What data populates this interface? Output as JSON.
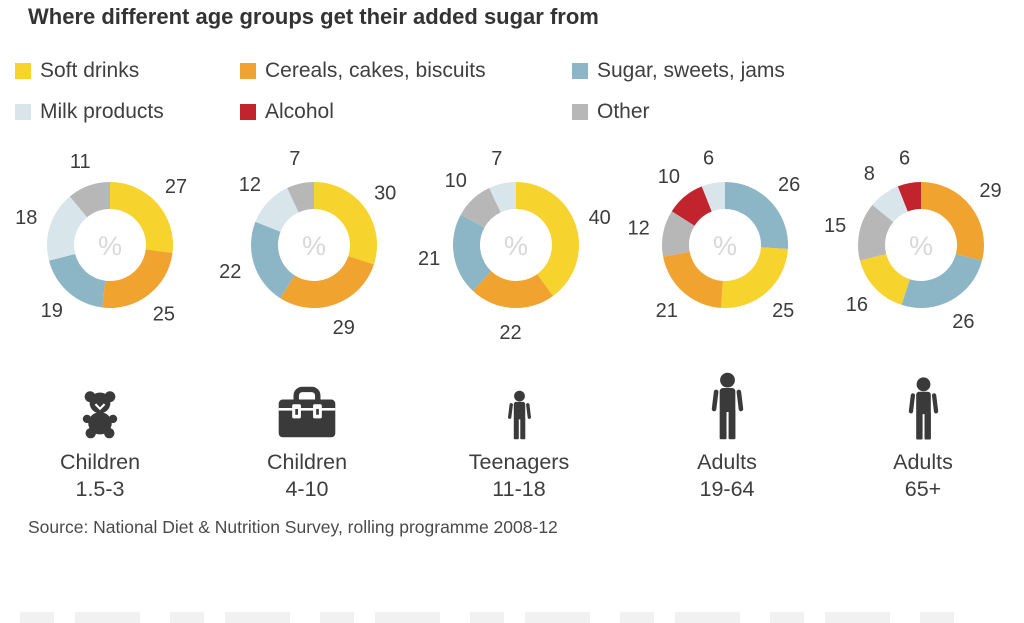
{
  "title": "Where different age groups get their added sugar from",
  "legend": {
    "items": [
      {
        "key": "soft-drinks",
        "label": "Soft drinks",
        "color": "#f6d32d"
      },
      {
        "key": "cereals",
        "label": "Cereals, cakes, biscuits",
        "color": "#f0a32f"
      },
      {
        "key": "sugar-sweets",
        "label": "Sugar, sweets, jams",
        "color": "#8cb6c6"
      },
      {
        "key": "milk-products",
        "label": "Milk products",
        "color": "#d8e6ec"
      },
      {
        "key": "alcohol",
        "label": "Alcohol",
        "color": "#c2242e"
      },
      {
        "key": "other",
        "label": "Other",
        "color": "#b7b7b7"
      }
    ]
  },
  "chart_data": {
    "type": "pie",
    "variant": "donut",
    "unit": "%",
    "center_label": "%",
    "categories": [
      "Soft drinks",
      "Cereals, cakes, biscuits",
      "Sugar, sweets, jams",
      "Milk products",
      "Alcohol",
      "Other"
    ],
    "groups": [
      {
        "label": "Children",
        "age_range": "1.5-3",
        "icon": "teddy-bear-icon",
        "segments": [
          {
            "category": "Soft drinks",
            "value": 27
          },
          {
            "category": "Cereals, cakes, biscuits",
            "value": 25
          },
          {
            "category": "Sugar, sweets, jams",
            "value": 19
          },
          {
            "category": "Milk products",
            "value": 18
          },
          {
            "category": "Other",
            "value": 11
          }
        ]
      },
      {
        "label": "Children",
        "age_range": "4-10",
        "icon": "lunchbox-icon",
        "segments": [
          {
            "category": "Soft drinks",
            "value": 30
          },
          {
            "category": "Cereals, cakes, biscuits",
            "value": 29
          },
          {
            "category": "Sugar, sweets, jams",
            "value": 22
          },
          {
            "category": "Milk products",
            "value": 12
          },
          {
            "category": "Other",
            "value": 7
          }
        ]
      },
      {
        "label": "Teenagers",
        "age_range": "11-18",
        "icon": "teen-person-icon",
        "segments": [
          {
            "category": "Soft drinks",
            "value": 40
          },
          {
            "category": "Cereals, cakes, biscuits",
            "value": 22
          },
          {
            "category": "Sugar, sweets, jams",
            "value": 21
          },
          {
            "category": "Other",
            "value": 10
          },
          {
            "category": "Milk products",
            "value": 7
          }
        ]
      },
      {
        "label": "Adults",
        "age_range": "19-64",
        "icon": "adult-person-icon",
        "segments": [
          {
            "category": "Sugar, sweets, jams",
            "value": 26
          },
          {
            "category": "Soft drinks",
            "value": 25
          },
          {
            "category": "Cereals, cakes, biscuits",
            "value": 21
          },
          {
            "category": "Other",
            "value": 12
          },
          {
            "category": "Alcohol",
            "value": 10
          },
          {
            "category": "Milk products",
            "value": 6
          }
        ]
      },
      {
        "label": "Adults",
        "age_range": "65+",
        "icon": "senior-person-icon",
        "segments": [
          {
            "category": "Cereals, cakes, biscuits",
            "value": 29
          },
          {
            "category": "Sugar, sweets, jams",
            "value": 26
          },
          {
            "category": "Soft drinks",
            "value": 16
          },
          {
            "category": "Other",
            "value": 15
          },
          {
            "category": "Milk products",
            "value": 8
          },
          {
            "category": "Alcohol",
            "value": 6
          }
        ]
      }
    ]
  },
  "source": "Source: National Diet & Nutrition Survey, rolling programme 2008-12"
}
